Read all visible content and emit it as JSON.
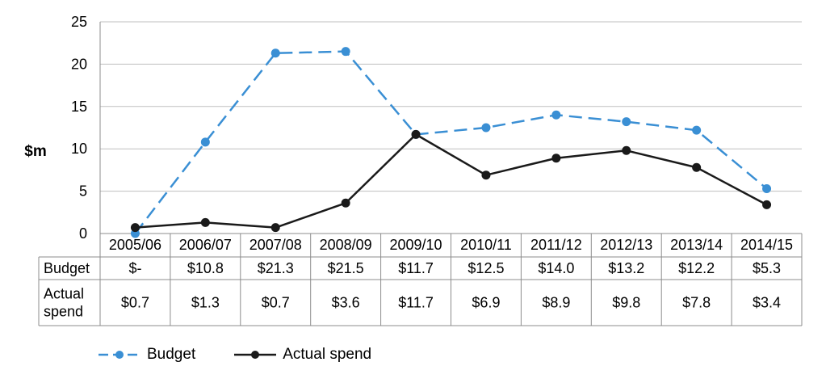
{
  "chart_data": {
    "type": "line",
    "ylabel": "$m",
    "ylim": [
      0,
      25
    ],
    "yticks": [
      0,
      5,
      10,
      15,
      20,
      25
    ],
    "grid": true,
    "categories": [
      "2005/06",
      "2006/07",
      "2007/08",
      "2008/09",
      "2009/10",
      "2010/11",
      "2011/12",
      "2012/13",
      "2013/14",
      "2014/15"
    ],
    "series": [
      {
        "name": "Budget",
        "color": "#3a8fd4",
        "line_style": "dashed",
        "values": [
          0,
          10.8,
          21.3,
          21.5,
          11.7,
          12.5,
          14.0,
          13.2,
          12.2,
          5.3
        ]
      },
      {
        "name": "Actual spend",
        "color": "#1a1a1a",
        "line_style": "solid",
        "values": [
          0.7,
          1.3,
          0.7,
          3.6,
          11.7,
          6.9,
          8.9,
          9.8,
          7.8,
          3.4
        ]
      }
    ],
    "table": {
      "rows": [
        {
          "label": "Budget",
          "cells": [
            "$-",
            "$10.8",
            "$21.3",
            "$21.5",
            "$11.7",
            "$12.5",
            "$14.0",
            "$13.2",
            "$12.2",
            "$5.3"
          ]
        },
        {
          "label": "Actual spend",
          "cells": [
            "$0.7",
            "$1.3",
            "$0.7",
            "$3.6",
            "$11.7",
            "$6.9",
            "$8.9",
            "$9.8",
            "$7.8",
            "$3.4"
          ]
        }
      ]
    },
    "legend": [
      "Budget",
      "Actual spend"
    ],
    "legend_position": "bottom-left"
  }
}
